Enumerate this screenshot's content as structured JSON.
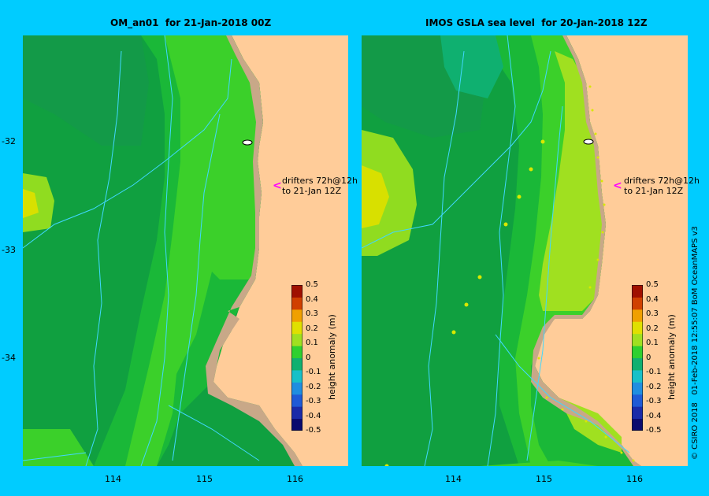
{
  "panels": [
    {
      "title": "OM_an01  for 21-Jan-2018 00Z"
    },
    {
      "title": "IMOS GSLA sea level  for 20-Jan-2018 12Z"
    }
  ],
  "lat_ticks": [
    "-32",
    "-33",
    "-34"
  ],
  "lon_ticks": [
    "114",
    "115",
    "116"
  ],
  "drifter_note": {
    "line1": "drifters 72h@12h",
    "line2": "to 21-Jan 12Z",
    "arrow": "<"
  },
  "colorbar": {
    "label": "height anomaly (m)",
    "ticks": [
      "0.5",
      "0.4",
      "0.3",
      "0.2",
      "0.1",
      "0",
      "-0.1",
      "-0.2",
      "-0.3",
      "-0.4",
      "-0.5"
    ],
    "colors": [
      "#0a0a6e",
      "#1a2aa8",
      "#1f5ad6",
      "#1f8ee0",
      "#18c0c8",
      "#10b070",
      "#2fd02f",
      "#a0e020",
      "#e0e000",
      "#f0a000",
      "#d04000",
      "#a01000"
    ]
  },
  "credit": "© CSIRO 2018   01-Feb-2018 12:55:07 BoM OceanMAPS v3"
}
